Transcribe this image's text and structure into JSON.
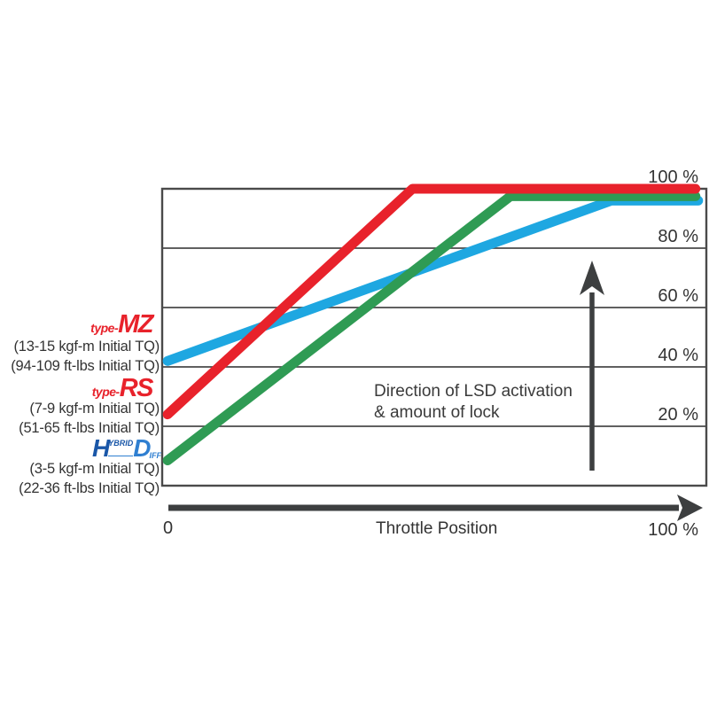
{
  "chart_data": {
    "type": "line",
    "title": "",
    "xlabel": "Throttle Position",
    "ylabel": "",
    "xlim": [
      0,
      100
    ],
    "ylim": [
      0,
      100
    ],
    "grid": "horizontal-only",
    "legend_position": "left-outside",
    "x_ticks": [
      {
        "value": 0,
        "label": "0"
      },
      {
        "value": 100,
        "label": "100 %"
      }
    ],
    "y_ticks": [
      {
        "value": 100,
        "label": "100 %"
      },
      {
        "value": 80,
        "label": "80 %"
      },
      {
        "value": 60,
        "label": "60 %"
      },
      {
        "value": 40,
        "label": "40 %"
      },
      {
        "value": 20,
        "label": "20 %"
      }
    ],
    "annotation": {
      "line1": "Direction of LSD activation",
      "line2": "& amount of lock"
    },
    "series": [
      {
        "id": "mz",
        "name": "type-MZ",
        "color": "#1ea7e1",
        "points": [
          [
            1,
            42
          ],
          [
            82.5,
            96
          ],
          [
            98.5,
            96
          ]
        ]
      },
      {
        "id": "hd",
        "name": "Hybrid HD",
        "color": "#2f9b54",
        "points": [
          [
            1,
            8.5
          ],
          [
            64,
            97.5
          ],
          [
            98,
            97.5
          ]
        ]
      },
      {
        "id": "rs",
        "name": "type-RS",
        "color": "#e8222b",
        "points": [
          [
            1,
            24
          ],
          [
            46,
            100
          ],
          [
            98,
            100
          ]
        ]
      }
    ]
  },
  "legend": {
    "items": [
      {
        "id": "mz",
        "logo_prefix": "type-",
        "logo_text": "MZ",
        "line1": "(13-15 kgf-m Initial TQ)",
        "line2": "(94-109 ft-lbs Initial TQ)"
      },
      {
        "id": "rs",
        "logo_prefix": "type-",
        "logo_text": "RS",
        "line1": "(7-9 kgf-m Initial TQ)",
        "line2": "(51-65 ft-lbs Initial TQ)"
      },
      {
        "id": "hd",
        "logo_h": "H",
        "logo_sup": "YBRID",
        "logo_d": "D",
        "logo_sub": "IFF",
        "line1": "(3-5 kgf-m Initial TQ)",
        "line2": "(22-36 ft-lbs Initial TQ)"
      }
    ]
  },
  "colors": {
    "red": "#e8222b",
    "green": "#2f9b54",
    "blue": "#1ea7e1",
    "hd_blue": "#1a57a8",
    "grid": "#4a4a4a",
    "axis": "#3d3f40",
    "text": "#333333"
  }
}
